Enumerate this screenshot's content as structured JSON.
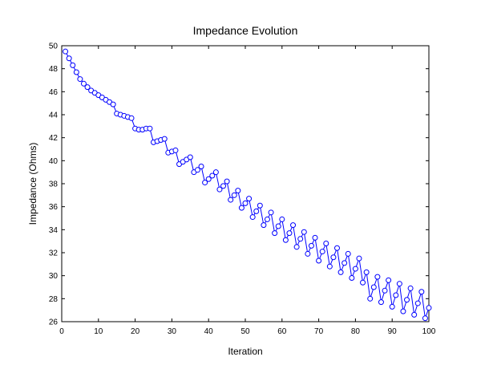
{
  "chart_data": {
    "type": "line",
    "title": "Impedance Evolution",
    "xlabel": "Iteration",
    "ylabel": "Impedance (Ohms)",
    "xlim": [
      0,
      100
    ],
    "ylim": [
      26,
      50
    ],
    "xticks": [
      0,
      10,
      20,
      30,
      40,
      50,
      60,
      70,
      80,
      90,
      100
    ],
    "yticks": [
      26,
      28,
      30,
      32,
      34,
      36,
      38,
      40,
      42,
      44,
      46,
      48,
      50
    ],
    "grid": false,
    "legend": "none",
    "series": [
      {
        "color": "#0000ff",
        "marker": "circle",
        "x": [
          1,
          2,
          3,
          4,
          5,
          6,
          7,
          8,
          9,
          10,
          11,
          12,
          13,
          14,
          15,
          16,
          17,
          18,
          19,
          20,
          21,
          22,
          23,
          24,
          25,
          26,
          27,
          28,
          29,
          30,
          31,
          32,
          33,
          34,
          35,
          36,
          37,
          38,
          39,
          40,
          41,
          42,
          43,
          44,
          45,
          46,
          47,
          48,
          49,
          50,
          51,
          52,
          53,
          54,
          55,
          56,
          57,
          58,
          59,
          60,
          61,
          62,
          63,
          64,
          65,
          66,
          67,
          68,
          69,
          70,
          71,
          72,
          73,
          74,
          75,
          76,
          77,
          78,
          79,
          80,
          81,
          82,
          83,
          84,
          85,
          86,
          87,
          88,
          89,
          90,
          91,
          92,
          93,
          94,
          95,
          96,
          97,
          98,
          99,
          100
        ],
        "y": [
          49.5,
          48.9,
          48.3,
          47.7,
          47.1,
          46.7,
          46.4,
          46.1,
          45.9,
          45.7,
          45.5,
          45.3,
          45.1,
          44.9,
          44.1,
          44.0,
          43.9,
          43.8,
          43.7,
          42.8,
          42.7,
          42.7,
          42.8,
          42.8,
          41.6,
          41.7,
          41.8,
          41.9,
          40.7,
          40.8,
          40.9,
          39.7,
          39.9,
          40.1,
          40.3,
          39.0,
          39.2,
          39.5,
          38.1,
          38.4,
          38.7,
          39.0,
          37.5,
          37.8,
          38.2,
          36.6,
          37.0,
          37.4,
          35.9,
          36.3,
          36.7,
          35.1,
          35.6,
          36.1,
          34.4,
          34.9,
          35.5,
          33.7,
          34.3,
          34.9,
          33.1,
          33.7,
          34.4,
          32.5,
          33.2,
          33.8,
          31.9,
          32.6,
          33.3,
          31.3,
          32.1,
          32.8,
          30.8,
          31.6,
          32.4,
          30.3,
          31.1,
          31.9,
          29.8,
          30.6,
          31.5,
          29.4,
          30.3,
          28.0,
          29.0,
          29.9,
          27.7,
          28.7,
          29.6,
          27.3,
          28.3,
          29.3,
          26.9,
          27.9,
          28.9,
          26.6,
          27.6,
          28.6,
          26.3,
          27.2
        ]
      }
    ]
  }
}
